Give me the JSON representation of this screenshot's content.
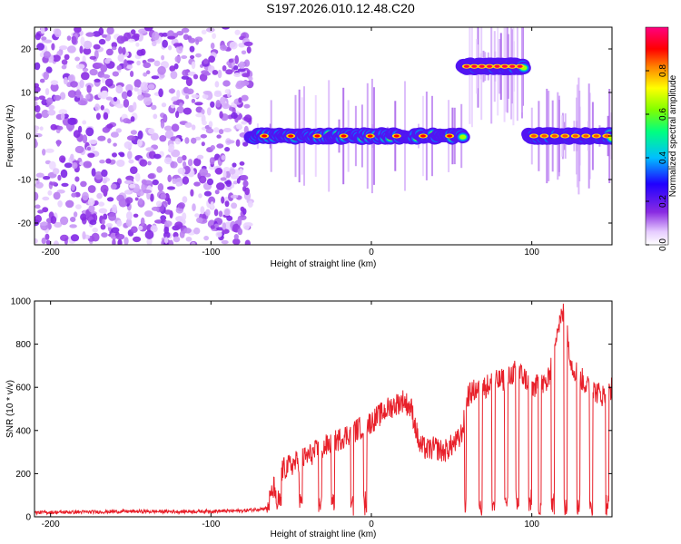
{
  "title": "S197.2026.010.12.48.C20",
  "chart_data": [
    {
      "type": "heatmap",
      "title": "S197.2026.010.12.48.C20",
      "xlabel": "Height of straight line (km)",
      "ylabel": "Frequency (Hz)",
      "xlim": [
        -210,
        150
      ],
      "ylim": [
        -25,
        25
      ],
      "xticks": [
        -200,
        -100,
        0,
        100
      ],
      "yticks": [
        -20,
        -10,
        0,
        10,
        20
      ],
      "colorbar": {
        "label": "Normalized spectral amplitude",
        "range": [
          0,
          1
        ],
        "ticks": [
          "0.0",
          "0.2",
          "0.4",
          "0.6",
          "0.8"
        ],
        "colors": [
          "#ffffff",
          "#7f00ff",
          "#0000ff",
          "#00bfff",
          "#00ff80",
          "#80ff00",
          "#ffff00",
          "#ff8000",
          "#ff0000",
          "#ff0080"
        ]
      },
      "features": [
        {
          "name": "noise region",
          "x_range": [
            -210,
            -75
          ],
          "freq_range": [
            -25,
            25
          ],
          "amplitude": 0.1
        },
        {
          "name": "main track",
          "x_range": [
            -75,
            57
          ],
          "freq": 0,
          "amplitude": 0.9
        },
        {
          "name": "offset track",
          "x_range": [
            57,
            95
          ],
          "freq": 16,
          "amplitude": 0.95
        },
        {
          "name": "return track",
          "x_range": [
            98,
            150
          ],
          "freq": 0,
          "amplitude": 0.85
        }
      ]
    },
    {
      "type": "line",
      "xlabel": "Height of straight line (km)",
      "ylabel": "SNR (10 * v/v)",
      "xlim": [
        -210,
        150
      ],
      "ylim": [
        0,
        1000
      ],
      "xticks": [
        -200,
        -100,
        0,
        100
      ],
      "yticks": [
        0,
        200,
        400,
        600,
        800,
        1000
      ],
      "series": [
        {
          "name": "SNR",
          "color": "#e8202a",
          "x": [
            -210,
            -180,
            -150,
            -120,
            -100,
            -80,
            -65,
            -60,
            -55,
            -50,
            -45,
            -40,
            -35,
            -30,
            -25,
            -20,
            -15,
            -10,
            -5,
            0,
            5,
            10,
            15,
            20,
            25,
            30,
            35,
            40,
            45,
            50,
            55,
            57,
            60,
            65,
            70,
            75,
            80,
            85,
            90,
            95,
            100,
            105,
            110,
            115,
            120,
            125,
            130,
            135,
            140,
            145,
            150
          ],
          "y": [
            20,
            22,
            25,
            24,
            26,
            28,
            40,
            150,
            220,
            240,
            260,
            280,
            300,
            320,
            340,
            360,
            380,
            400,
            420,
            440,
            470,
            500,
            520,
            540,
            500,
            330,
            310,
            320,
            300,
            330,
            360,
            410,
            560,
            590,
            600,
            620,
            630,
            640,
            680,
            650,
            600,
            610,
            620,
            850,
            950,
            700,
            650,
            600,
            580,
            560,
            600
          ]
        }
      ],
      "dropouts": [
        [
          -60,
          -56
        ],
        [
          -45,
          -43
        ],
        [
          -33,
          -31
        ],
        [
          -25,
          -23
        ],
        [
          -13,
          -11
        ],
        [
          -5,
          -3
        ],
        [
          58,
          59
        ],
        [
          67,
          69
        ],
        [
          75,
          77
        ],
        [
          83,
          85
        ],
        [
          90,
          92
        ],
        [
          98,
          100
        ],
        [
          104,
          106
        ],
        [
          112,
          114
        ],
        [
          120,
          122
        ],
        [
          128,
          130
        ],
        [
          136,
          138
        ],
        [
          146,
          148
        ]
      ]
    }
  ]
}
